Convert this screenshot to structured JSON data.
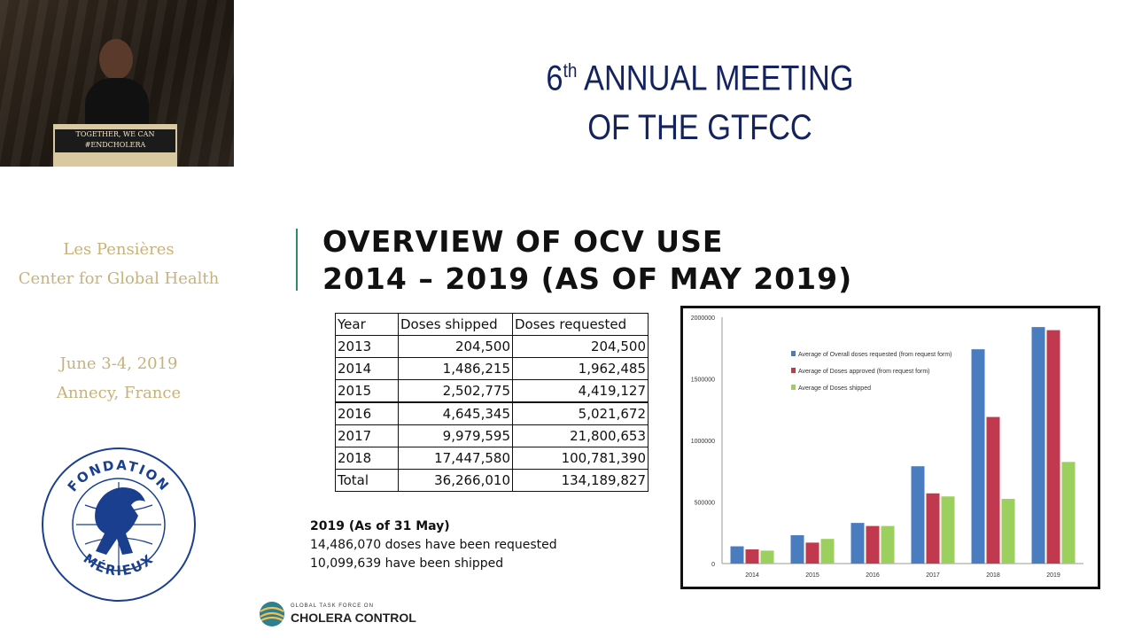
{
  "video": {
    "podium_line1": "TOGETHER, WE CAN",
    "podium_line2": "#ENDCHOLERA"
  },
  "sidebar": {
    "org_line1": "Les Pensières",
    "org_line2": "Center for Global Health",
    "date": "June 3-4, 2019",
    "place": "Annecy, France",
    "logo_top": "FONDATION",
    "logo_bottom": "MÉRIEUX"
  },
  "meeting": {
    "number": "6",
    "suffix": "th",
    "line1_rest": " ANNUAL MEETING",
    "line2": "OF THE GTFCC"
  },
  "slide": {
    "title_line1": "OVERVIEW OF OCV USE",
    "title_line2": "2014 – 2019 (AS OF MAY 2019)"
  },
  "table": {
    "headers": [
      "Year",
      "Doses shipped",
      "Doses requested"
    ],
    "rows": [
      [
        "2013",
        "204,500",
        "204,500"
      ],
      [
        "2014",
        "1,486,215",
        "1,962,485"
      ],
      [
        "2015",
        "2,502,775",
        "4,419,127"
      ],
      [
        "2016",
        "4,645,345",
        "5,021,672"
      ],
      [
        "2017",
        "9,979,595",
        "21,800,653"
      ],
      [
        "2018",
        "17,447,580",
        "100,781,390"
      ],
      [
        "Total",
        "36,266,010",
        "134,189,827"
      ]
    ]
  },
  "note": {
    "heading": "2019 (As of 31 May)",
    "line1": "14,486,070 doses have been requested",
    "line2": "10,099,639 have been shipped"
  },
  "footer": {
    "small": "GLOBAL TASK FORCE ON",
    "big": "CHOLERA CONTROL"
  },
  "chart_data": {
    "type": "bar",
    "categories": [
      "2014",
      "2015",
      "2016",
      "2017",
      "2018",
      "2019"
    ],
    "series": [
      {
        "name": "Average of Overall doses requested (from request form)",
        "color": "#4a7cc0",
        "values": [
          140000,
          230000,
          330000,
          790000,
          1740000,
          1920000
        ]
      },
      {
        "name": "Average of Doses approved (from request form)",
        "color": "#c0394f",
        "values": [
          115000,
          170000,
          305000,
          570000,
          1190000,
          1895000
        ]
      },
      {
        "name": "Average of Doses shipped",
        "color": "#9bd05e",
        "values": [
          105000,
          200000,
          305000,
          545000,
          525000,
          825000
        ]
      }
    ],
    "yticks": [
      "0",
      "500000",
      "1000000",
      "1500000",
      "2000000"
    ],
    "ylim": [
      0,
      2000000
    ],
    "legend_position": "top-left",
    "grid": false
  }
}
